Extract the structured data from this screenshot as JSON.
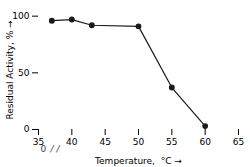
{
  "chart_data": {
    "type": "line",
    "x": [
      37,
      40,
      43,
      50,
      55,
      60
    ],
    "values": [
      96,
      97,
      92,
      91,
      37,
      3
    ],
    "xlim": [
      35,
      65
    ],
    "xticks": [
      35,
      40,
      45,
      50,
      55,
      60,
      65
    ],
    "ylim": [
      0,
      105
    ],
    "yticks": [
      0,
      50,
      100
    ],
    "xlabel": "Temperature,  °C",
    "ylabel": "Residual Activity, %",
    "color": "#1a1a1a",
    "marker": "circle",
    "grid": false,
    "annotations": [
      "0",
      "/ /"
    ]
  }
}
